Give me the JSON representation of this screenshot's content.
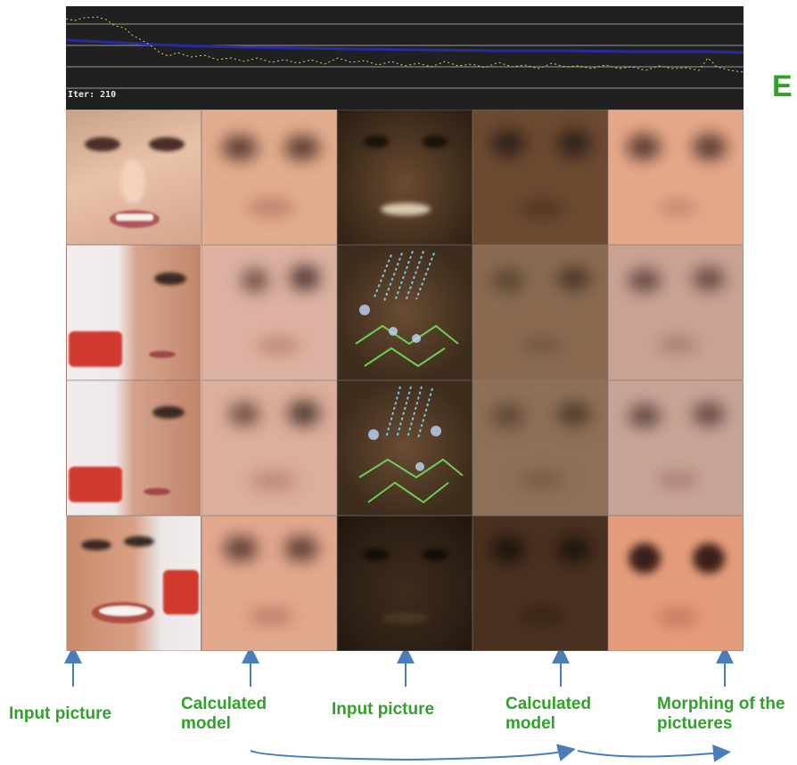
{
  "plot": {
    "iter_text": "Iter: 210"
  },
  "edge_letter": "E",
  "columns": [
    {
      "caption": "Input picture"
    },
    {
      "caption": "Calculated model"
    },
    {
      "caption": "Input picture"
    },
    {
      "caption": "Calculated model"
    },
    {
      "caption": "Morphing of the pictueres"
    }
  ],
  "colors": {
    "label_green": "#33a02c",
    "arrow_blue": "#4a7ebb",
    "plot_yellow": "#d8d84a",
    "plot_blue": "#2a2aa0"
  }
}
